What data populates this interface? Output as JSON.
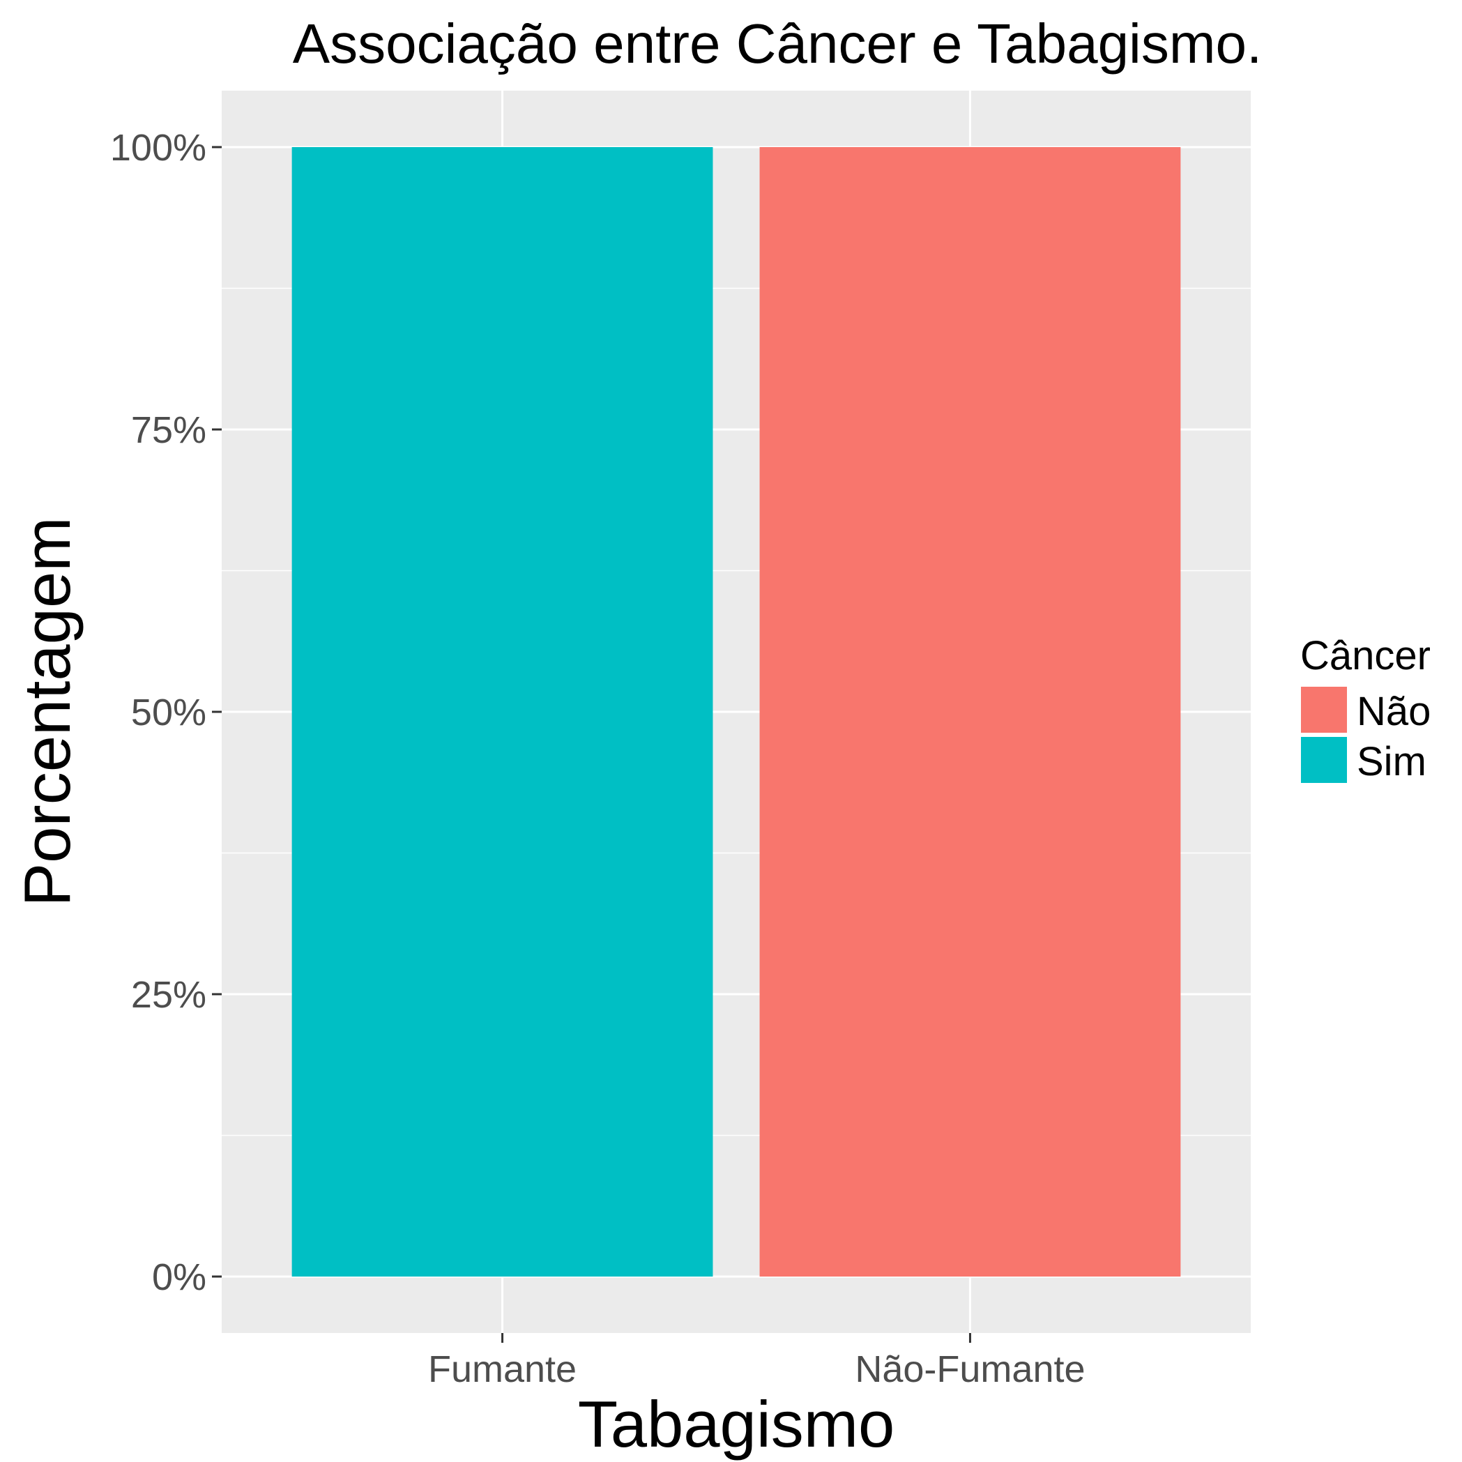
{
  "chart_data": {
    "type": "bar",
    "title": "Associação entre Câncer e Tabagismo.",
    "xlabel": "Tabagismo",
    "ylabel": "Porcentagem",
    "categories": [
      "Fumante",
      "Não-Fumante"
    ],
    "bars": [
      {
        "category": "Fumante",
        "series": "Sim",
        "value": 100
      },
      {
        "category": "Não-Fumante",
        "series": "Não",
        "value": 100
      }
    ],
    "ylim": [
      -5,
      105
    ],
    "yticks": [
      0,
      25,
      50,
      75,
      100
    ],
    "ytick_labels": [
      "0%",
      "25%",
      "50%",
      "75%",
      "100%"
    ],
    "grid": true,
    "legend": {
      "title": "Câncer",
      "placement": "right",
      "entries": [
        {
          "label": "Não",
          "color": "#F8766D"
        },
        {
          "label": "Sim",
          "color": "#00BFC4"
        }
      ]
    },
    "colors": {
      "panel": "#EBEBEB",
      "grid": "#FFFFFF",
      "Não": "#F8766D",
      "Sim": "#00BFC4"
    }
  }
}
